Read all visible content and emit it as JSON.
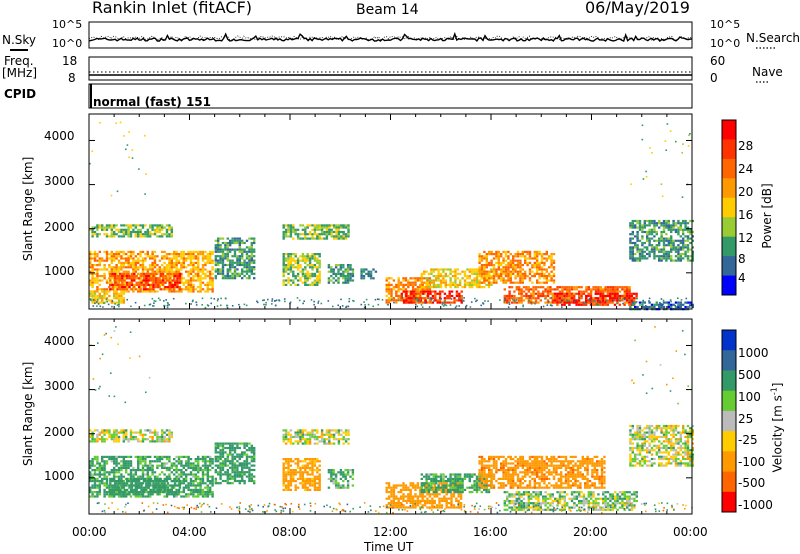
{
  "header": {
    "title": "Rankin Inlet (fitACF)",
    "beam": "Beam 14",
    "date": "06/May/2019"
  },
  "noise_panel": {
    "left_label": "N.Sky",
    "right_label": "N.Search",
    "left_ticks": [
      "10^5",
      "10^0"
    ],
    "right_ticks": [
      "10^5",
      "10^0"
    ]
  },
  "freq_panel": {
    "label_line1": "Freq.",
    "label_line2": "[MHz]",
    "left_ticks": [
      "18",
      "8"
    ],
    "right_label": "Nave",
    "right_ticks": [
      "60",
      "0"
    ]
  },
  "cpid_panel": {
    "label": "CPID",
    "value": "normal (fast) 151"
  },
  "power_panel": {
    "ylabel": "Slant Range [km]",
    "yticks": [
      "4000",
      "3000",
      "2000",
      "1000"
    ],
    "colorbar_label": "Power [dB]",
    "colorbar_ticks": [
      "28",
      "24",
      "20",
      "16",
      "12",
      "8",
      "4"
    ],
    "colorbar_colors": [
      "#ff0000",
      "#ff3300",
      "#ff6600",
      "#ff9900",
      "#ffcc00",
      "#99cc33",
      "#339966",
      "#336699",
      "#0000ff"
    ]
  },
  "velocity_panel": {
    "ylabel": "Slant Range [km]",
    "yticks": [
      "4000",
      "3000",
      "2000",
      "1000"
    ],
    "colorbar_label": "Velocity [m s",
    "colorbar_label_sup": "-1",
    "colorbar_label_end": "]",
    "colorbar_ticks": [
      "1000",
      "500",
      "100",
      "25",
      "-25",
      "-100",
      "-500",
      "-1000"
    ],
    "colorbar_colors": [
      "#0033cc",
      "#336699",
      "#339966",
      "#66cc33",
      "#bbbbbb",
      "#ffcc00",
      "#ff9900",
      "#ff6600",
      "#ff0000"
    ]
  },
  "xaxis": {
    "label": "Time UT",
    "ticks": [
      "00:00",
      "04:00",
      "08:00",
      "12:00",
      "16:00",
      "20:00",
      "00:00"
    ]
  },
  "chart_data": [
    {
      "type": "heatmap",
      "title": "Rankin Inlet (fitACF)",
      "xlabel": "Time UT",
      "ylabel": "Slant Range [km]",
      "x_range_hours": [
        0,
        24
      ],
      "ylim": [
        180,
        4600
      ],
      "colorbar": "Power [dB]",
      "color_range": [
        0,
        30
      ],
      "patches": [
        {
          "t0": 0.0,
          "t1": 3.3,
          "r0": 1850,
          "r1": 2100,
          "v": 14
        },
        {
          "t0": 0.0,
          "t1": 4.9,
          "r0": 600,
          "r1": 1500,
          "v": 20
        },
        {
          "t0": 0.8,
          "t1": 3.6,
          "r0": 650,
          "r1": 1000,
          "v": 26
        },
        {
          "t0": 0.0,
          "t1": 1.4,
          "r0": 350,
          "r1": 600,
          "v": 18
        },
        {
          "t0": 5.0,
          "t1": 6.6,
          "r0": 900,
          "r1": 1800,
          "v": 12
        },
        {
          "t0": 7.7,
          "t1": 10.3,
          "r0": 1800,
          "r1": 2100,
          "v": 14
        },
        {
          "t0": 7.7,
          "t1": 9.2,
          "r0": 750,
          "r1": 1450,
          "v": 15
        },
        {
          "t0": 9.5,
          "t1": 10.5,
          "r0": 800,
          "r1": 1200,
          "v": 12
        },
        {
          "t0": 10.8,
          "t1": 11.4,
          "r0": 900,
          "r1": 1100,
          "v": 10
        },
        {
          "t0": 11.8,
          "t1": 13.6,
          "r0": 350,
          "r1": 900,
          "v": 22
        },
        {
          "t0": 12.4,
          "t1": 14.8,
          "r0": 350,
          "r1": 600,
          "v": 28
        },
        {
          "t0": 13.2,
          "t1": 16.0,
          "r0": 700,
          "r1": 1100,
          "v": 18
        },
        {
          "t0": 15.5,
          "t1": 18.5,
          "r0": 800,
          "r1": 1500,
          "v": 22
        },
        {
          "t0": 16.5,
          "t1": 21.5,
          "r0": 350,
          "r1": 700,
          "v": 24
        },
        {
          "t0": 18.5,
          "t1": 21.8,
          "r0": 300,
          "r1": 550,
          "v": 28
        },
        {
          "t0": 21.5,
          "t1": 24.0,
          "r0": 1300,
          "r1": 2200,
          "v": 12
        },
        {
          "t0": 21.5,
          "t1": 24.0,
          "r0": 200,
          "r1": 350,
          "v": 8
        }
      ]
    },
    {
      "type": "heatmap",
      "title": "Rankin Inlet (fitACF)",
      "xlabel": "Time UT",
      "ylabel": "Slant Range [km]",
      "x_range_hours": [
        0,
        24
      ],
      "ylim": [
        180,
        4600
      ],
      "colorbar": "Velocity [m s-1]",
      "color_levels": [
        1000,
        500,
        100,
        25,
        -25,
        -100,
        -500,
        -1000
      ],
      "patches": [
        {
          "t0": 0.0,
          "t1": 3.3,
          "r0": 1850,
          "r1": 2100,
          "v": 0
        },
        {
          "t0": 0.0,
          "t1": 4.9,
          "r0": 600,
          "r1": 1500,
          "v": 150
        },
        {
          "t0": 0.8,
          "t1": 3.6,
          "r0": 650,
          "r1": 1000,
          "v": 300
        },
        {
          "t0": 5.0,
          "t1": 6.6,
          "r0": 900,
          "r1": 1800,
          "v": 200
        },
        {
          "t0": 7.7,
          "t1": 10.3,
          "r0": 1800,
          "r1": 2100,
          "v": 0
        },
        {
          "t0": 7.7,
          "t1": 9.2,
          "r0": 750,
          "r1": 1450,
          "v": -200
        },
        {
          "t0": 9.5,
          "t1": 10.5,
          "r0": 800,
          "r1": 1200,
          "v": 120
        },
        {
          "t0": 11.8,
          "t1": 14.8,
          "r0": 350,
          "r1": 900,
          "v": -300
        },
        {
          "t0": 13.2,
          "t1": 16.0,
          "r0": 700,
          "r1": 1100,
          "v": 150
        },
        {
          "t0": 15.5,
          "t1": 20.5,
          "r0": 800,
          "r1": 1500,
          "v": -400
        },
        {
          "t0": 16.5,
          "t1": 21.8,
          "r0": 300,
          "r1": 700,
          "v": 50
        },
        {
          "t0": 21.5,
          "t1": 24.0,
          "r0": 1300,
          "r1": 2200,
          "v": 0
        }
      ]
    }
  ]
}
